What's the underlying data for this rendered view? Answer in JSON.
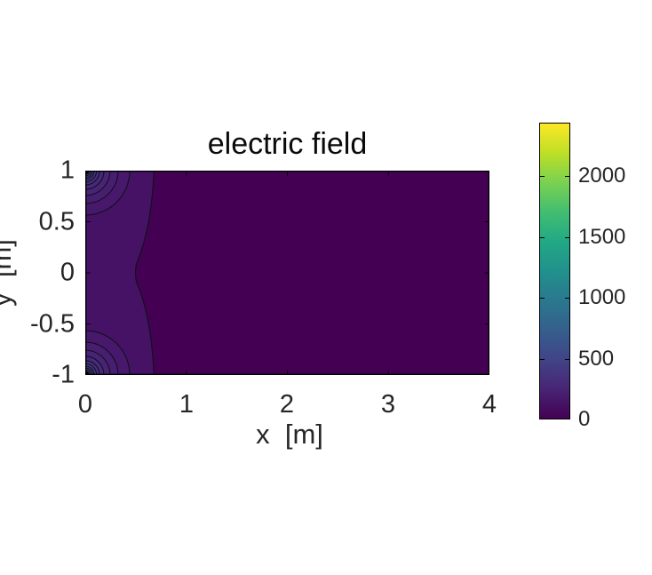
{
  "figure": {
    "title": "electric field",
    "background_color": "#ffffff"
  },
  "chart_data": {
    "type": "heatmap",
    "subtype": "filled_contour",
    "title": "electric field",
    "xlabel": "x  [m]",
    "ylabel": "y  [m]",
    "xlim": [
      0,
      4
    ],
    "ylim": [
      -1,
      1
    ],
    "x_ticks": [
      0,
      1,
      2,
      3,
      4
    ],
    "y_ticks": [
      1,
      0.5,
      0,
      -0.5,
      -1
    ],
    "x_tick_labels": [
      "0",
      "1",
      "2",
      "3",
      "4"
    ],
    "y_tick_labels": [
      "1",
      "0.5",
      "0",
      "-0.5",
      "-1"
    ],
    "grid": false,
    "aspect": "equal",
    "colormap": "viridis",
    "colorbar": {
      "position": "right",
      "vmin": 0,
      "vmax": 2440,
      "ticks": [
        2000,
        1500,
        1000,
        500,
        0
      ],
      "tick_labels": [
        "2000",
        "1500",
        "1000",
        "500",
        "0"
      ]
    },
    "field_description": "electric field magnitude of two point sources; contour bands concentric around each source, merging into one lobe near x=0",
    "sources_m": [
      {
        "x": 0,
        "y": 1
      },
      {
        "x": 0,
        "y": -1
      }
    ],
    "outer_contour": {
      "x_at_wall_m": 0.68,
      "x_at_pinch_m": 0.49
    },
    "ring_radii_m": [
      0.44,
      0.325,
      0.245,
      0.185,
      0.142,
      0.112,
      0.088,
      0.07,
      0.053
    ],
    "core_radius_m": 0.042,
    "background_value_color": "#440154",
    "band_colors": [
      "#461266",
      "#47186c",
      "#481e71",
      "#482376",
      "#47297a",
      "#462f7e",
      "#453581",
      "#433b84",
      "#424086",
      "#404588"
    ],
    "core_color": "#000000",
    "contour_line_color": "#12101c",
    "frame_color": "#000000",
    "text_color": "#262626",
    "colormap_stops": [
      [
        "0%",
        "#440154"
      ],
      [
        "10%",
        "#482475"
      ],
      [
        "20%",
        "#414487"
      ],
      [
        "30%",
        "#355f8d"
      ],
      [
        "40%",
        "#2a788e"
      ],
      [
        "50%",
        "#21918c"
      ],
      [
        "60%",
        "#22a884"
      ],
      [
        "70%",
        "#42be71"
      ],
      [
        "80%",
        "#7ad151"
      ],
      [
        "90%",
        "#bddf26"
      ],
      [
        "100%",
        "#fde725"
      ]
    ]
  }
}
